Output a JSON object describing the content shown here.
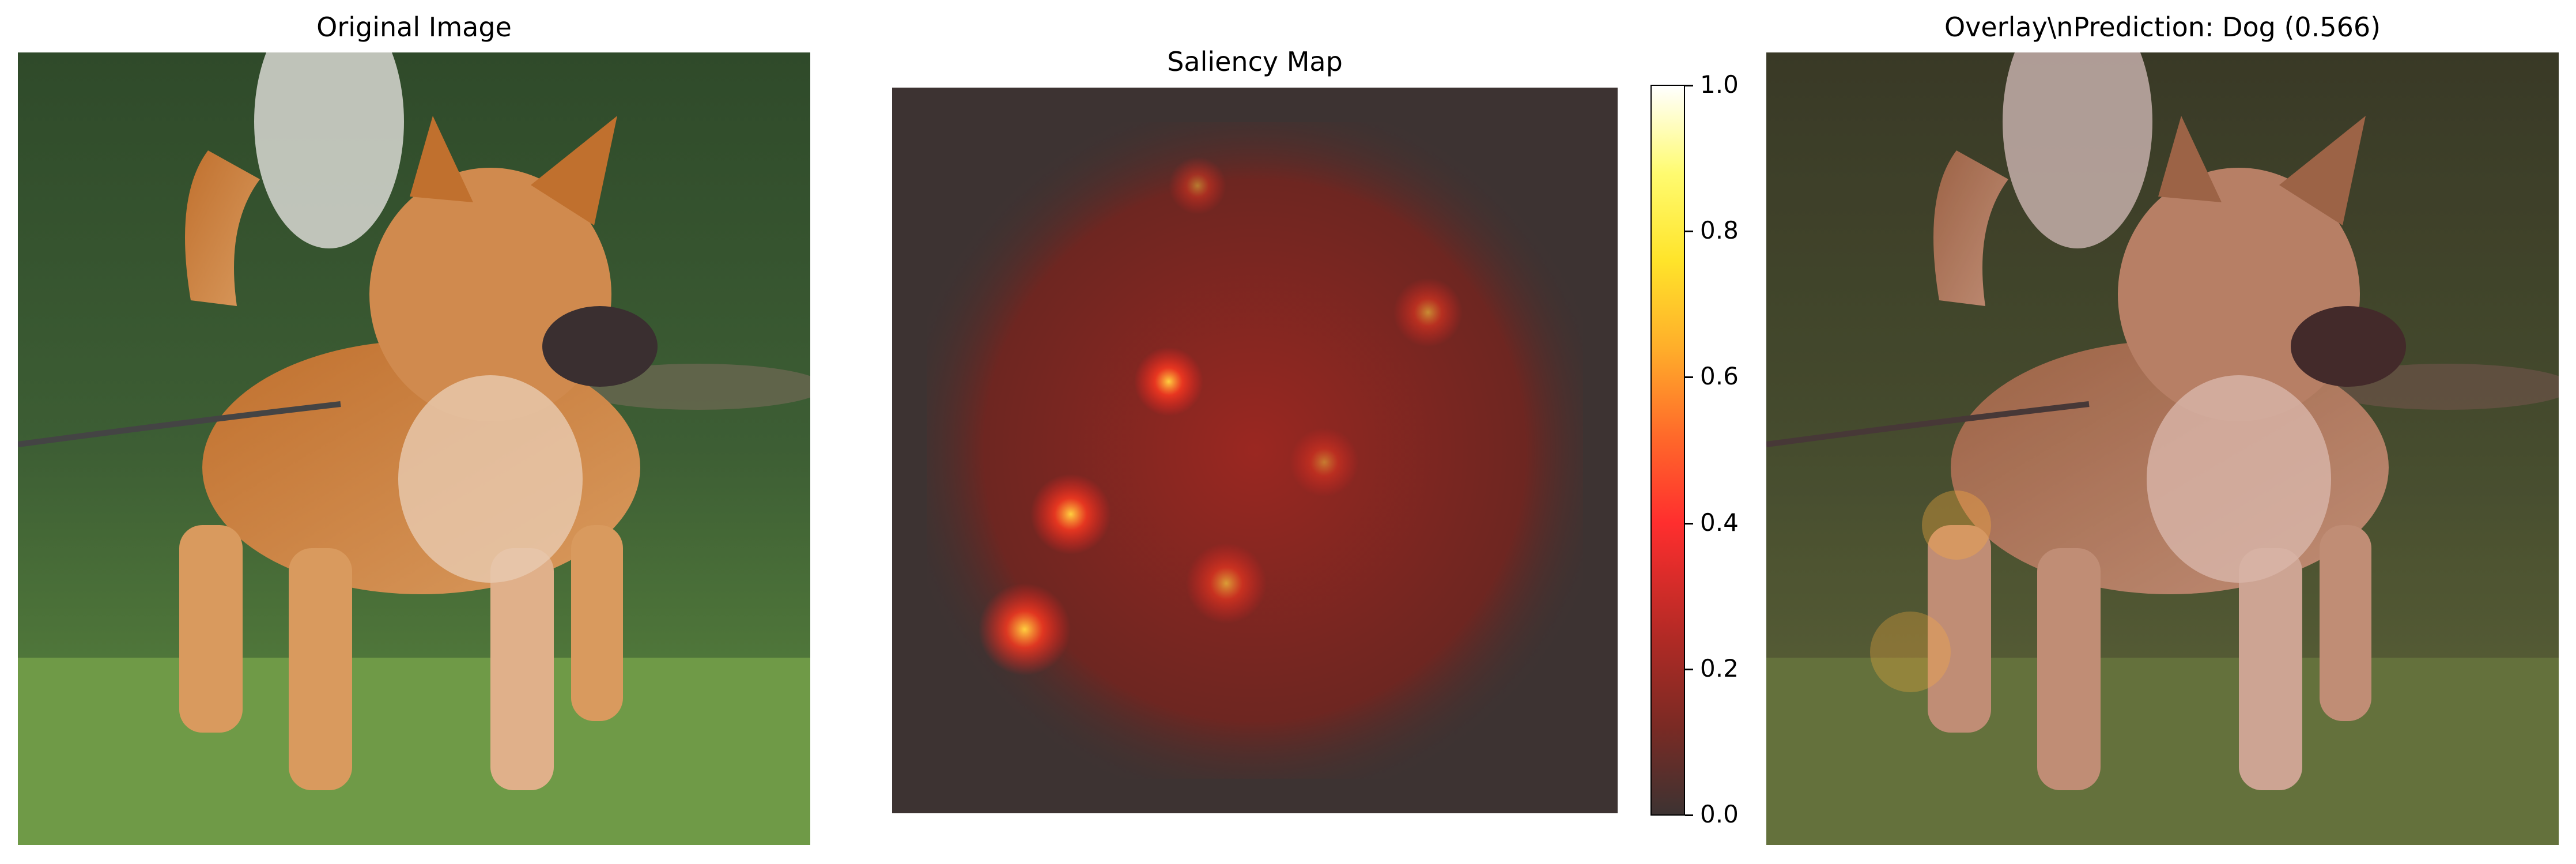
{
  "panels": {
    "original": {
      "title": "Original Image"
    },
    "saliency": {
      "title": "Saliency Map"
    },
    "overlay": {
      "title": "Overlay\\nPrediction: Dog (0.566)"
    }
  },
  "colorbar": {
    "ticks": [
      "0.0",
      "0.2",
      "0.4",
      "0.6",
      "0.8",
      "1.0"
    ],
    "colormap": "hot",
    "colors": {
      "low": "#3d3332",
      "mid": "#ff2e2e",
      "high": "#ffffff"
    }
  }
}
